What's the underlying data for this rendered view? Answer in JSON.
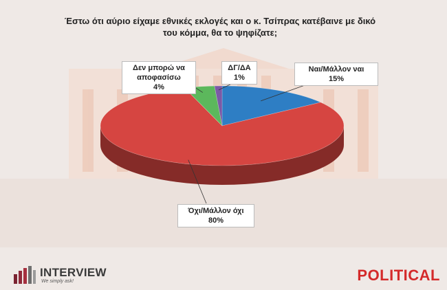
{
  "title_line1": "Έστω ότι αύριο είχαμε εθνικές εκλογές και ο κ. Τσίπρας κατέβαινε με δικό",
  "title_line2": "του κόμμα, θα το ψηφίζατε;",
  "chart_data": {
    "type": "pie",
    "categories": [
      "Ναι/Μάλλον ναι",
      "Όχι/Μάλλον όχι",
      "Δεν μπορώ να αποφασίσω",
      "ΔΓ/ΔΑ"
    ],
    "values": [
      15,
      80,
      4,
      1
    ],
    "value_labels": [
      "15%",
      "80%",
      "4%",
      "1%"
    ],
    "colors": [
      "#2e7ec4",
      "#d64541",
      "#5cb85c",
      "#7b5aa6"
    ]
  },
  "labels": {
    "yes_line1": "Ναι/Μάλλον ναι",
    "yes_value": "15%",
    "no_line1": "Όχι/Μάλλον όχι",
    "no_value": "80%",
    "undecided_line1": "Δεν μπορώ να",
    "undecided_line2": "αποφασίσω",
    "undecided_value": "4%",
    "dk_line1": "ΔΓ/ΔΑ",
    "dk_value": "1%"
  },
  "logos": {
    "interview_name": "INTERVIEW",
    "interview_tagline": "We simply ask!",
    "political": "POLITICAL"
  }
}
